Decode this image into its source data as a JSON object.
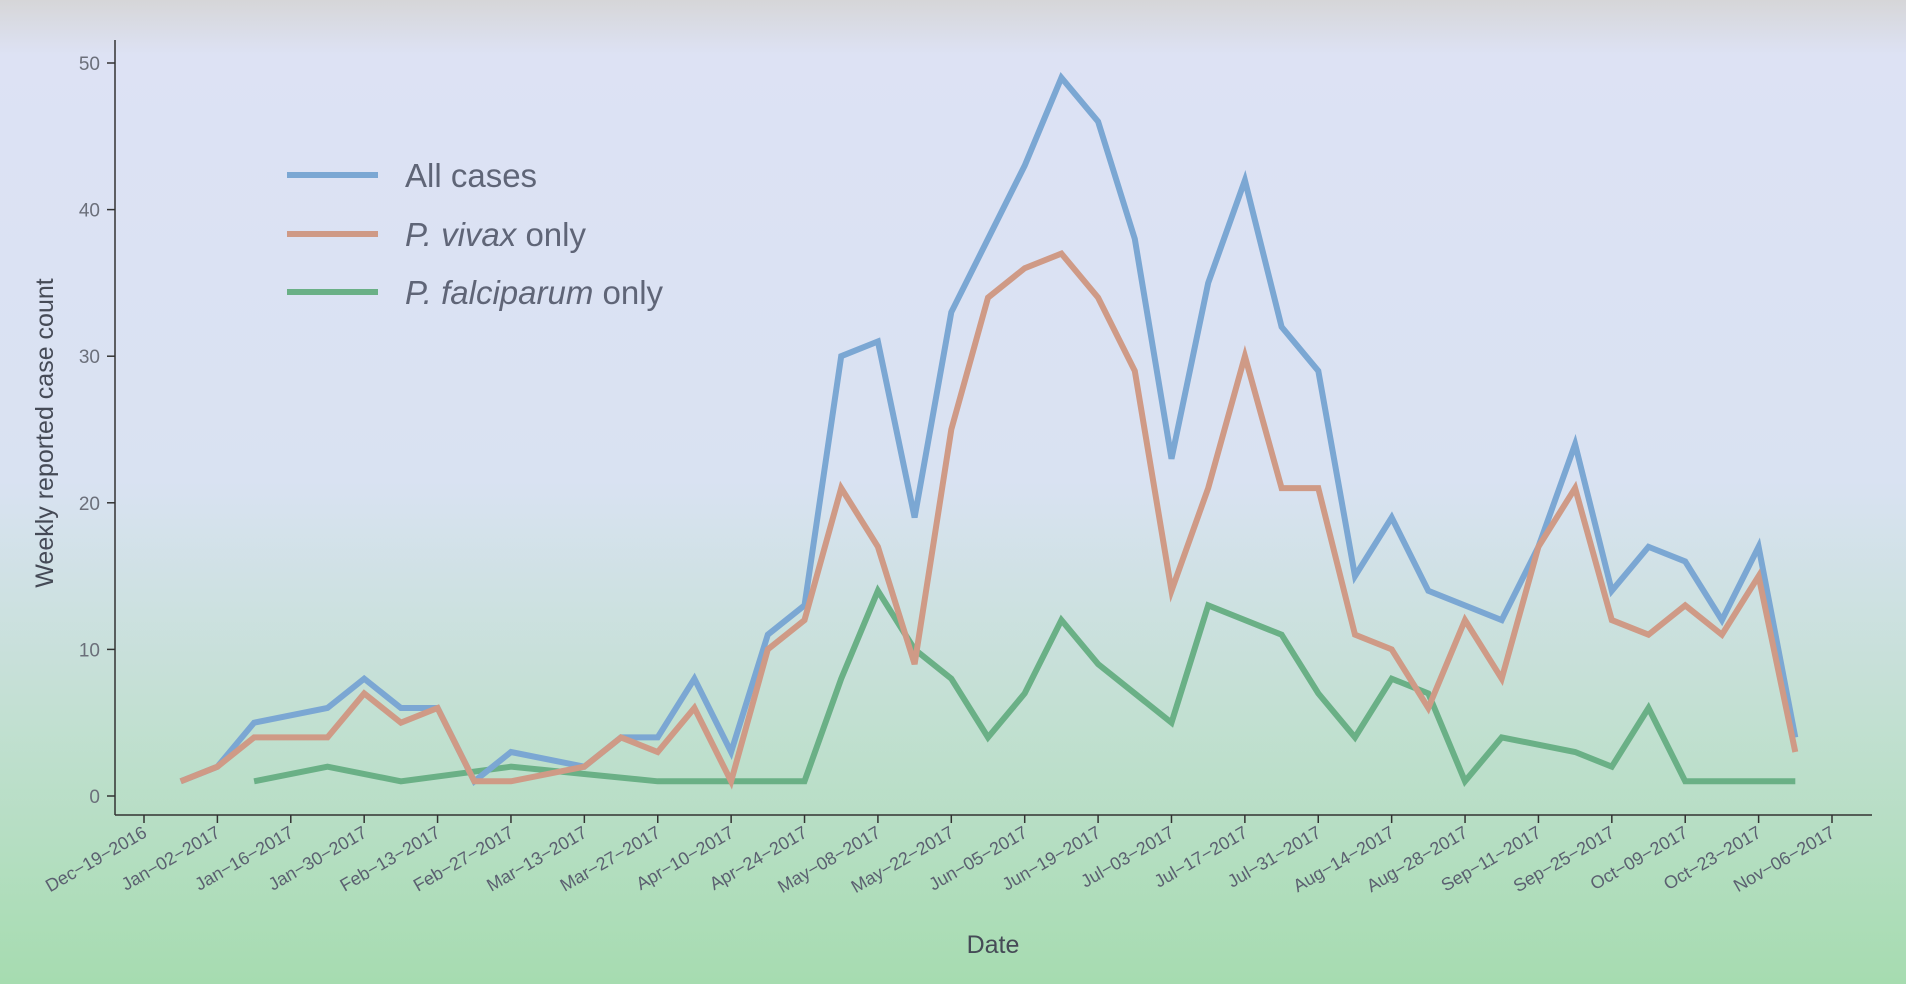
{
  "chart_data": {
    "type": "line",
    "title": "",
    "xlabel": "Date",
    "ylabel": "Weekly reported case count",
    "ylim": [
      0,
      50
    ],
    "xlim": [
      "2016-12-19",
      "2017-11-06"
    ],
    "y_ticks": [
      0,
      10,
      20,
      30,
      40,
      50
    ],
    "x_tick_labels": [
      "Dec−19−2016",
      "Jan−02−2017",
      "Jan−16−2017",
      "Jan−30−2017",
      "Feb−13−2017",
      "Feb−27−2017",
      "Mar−13−2017",
      "Mar−27−2017",
      "Apr−10−2017",
      "Apr−24−2017",
      "May−08−2017",
      "May−22−2017",
      "Jun−05−2017",
      "Jun−19−2017",
      "Jul−03−2017",
      "Jul−17−2017",
      "Jul−31−2017",
      "Aug−14−2017",
      "Aug−28−2017",
      "Sep−11−2017",
      "Sep−25−2017",
      "Oct−09−2017",
      "Oct−23−2017",
      "Nov−06−2017"
    ],
    "x_tick_dates": [
      "2016-12-19",
      "2017-01-02",
      "2017-01-16",
      "2017-01-30",
      "2017-02-13",
      "2017-02-27",
      "2017-03-13",
      "2017-03-27",
      "2017-04-10",
      "2017-04-24",
      "2017-05-08",
      "2017-05-22",
      "2017-06-05",
      "2017-06-19",
      "2017-07-03",
      "2017-07-17",
      "2017-07-31",
      "2017-08-14",
      "2017-08-28",
      "2017-09-11",
      "2017-09-25",
      "2017-10-09",
      "2017-10-23",
      "2017-11-06"
    ],
    "grid": false,
    "legend_position": "top-left",
    "series": [
      {
        "name": "All cases",
        "legend_plain": "All cases",
        "legend_italic": "",
        "color": "#7ba7d3",
        "points": [
          [
            "2016-12-26",
            1
          ],
          [
            "2017-01-02",
            2
          ],
          [
            "2017-01-09",
            5
          ],
          [
            "2017-01-23",
            6
          ],
          [
            "2017-01-30",
            8
          ],
          [
            "2017-02-06",
            6
          ],
          [
            "2017-02-13",
            6
          ],
          [
            "2017-02-20",
            1
          ],
          [
            "2017-02-27",
            3
          ],
          [
            "2017-03-13",
            2
          ],
          [
            "2017-03-20",
            4
          ],
          [
            "2017-03-27",
            4
          ],
          [
            "2017-04-03",
            8
          ],
          [
            "2017-04-10",
            3
          ],
          [
            "2017-04-17",
            11
          ],
          [
            "2017-04-24",
            13
          ],
          [
            "2017-05-01",
            30
          ],
          [
            "2017-05-08",
            31
          ],
          [
            "2017-05-15",
            19
          ],
          [
            "2017-05-22",
            33
          ],
          [
            "2017-05-29",
            38
          ],
          [
            "2017-06-05",
            43
          ],
          [
            "2017-06-12",
            49
          ],
          [
            "2017-06-19",
            46
          ],
          [
            "2017-06-26",
            38
          ],
          [
            "2017-07-03",
            23
          ],
          [
            "2017-07-10",
            35
          ],
          [
            "2017-07-17",
            42
          ],
          [
            "2017-07-24",
            32
          ],
          [
            "2017-07-31",
            29
          ],
          [
            "2017-08-07",
            15
          ],
          [
            "2017-08-14",
            19
          ],
          [
            "2017-08-21",
            14
          ],
          [
            "2017-09-04",
            12
          ],
          [
            "2017-09-11",
            17
          ],
          [
            "2017-09-18",
            24
          ],
          [
            "2017-09-25",
            14
          ],
          [
            "2017-10-02",
            17
          ],
          [
            "2017-10-09",
            16
          ],
          [
            "2017-10-16",
            12
          ],
          [
            "2017-10-23",
            17
          ],
          [
            "2017-10-30",
            4
          ]
        ]
      },
      {
        "name": "P. vivax only",
        "legend_plain": " only",
        "legend_italic": "P. vivax",
        "color": "#cf9a86",
        "points": [
          [
            "2016-12-26",
            1
          ],
          [
            "2017-01-02",
            2
          ],
          [
            "2017-01-09",
            4
          ],
          [
            "2017-01-23",
            4
          ],
          [
            "2017-01-30",
            7
          ],
          [
            "2017-02-06",
            5
          ],
          [
            "2017-02-13",
            6
          ],
          [
            "2017-02-20",
            1
          ],
          [
            "2017-02-27",
            1
          ],
          [
            "2017-03-13",
            2
          ],
          [
            "2017-03-20",
            4
          ],
          [
            "2017-03-27",
            3
          ],
          [
            "2017-04-03",
            6
          ],
          [
            "2017-04-10",
            1
          ],
          [
            "2017-04-17",
            10
          ],
          [
            "2017-04-24",
            12
          ],
          [
            "2017-05-01",
            21
          ],
          [
            "2017-05-08",
            17
          ],
          [
            "2017-05-15",
            9
          ],
          [
            "2017-05-22",
            25
          ],
          [
            "2017-05-29",
            34
          ],
          [
            "2017-06-05",
            36
          ],
          [
            "2017-06-12",
            37
          ],
          [
            "2017-06-19",
            34
          ],
          [
            "2017-06-26",
            29
          ],
          [
            "2017-07-03",
            14
          ],
          [
            "2017-07-10",
            21
          ],
          [
            "2017-07-17",
            30
          ],
          [
            "2017-07-24",
            21
          ],
          [
            "2017-07-31",
            21
          ],
          [
            "2017-08-07",
            11
          ],
          [
            "2017-08-14",
            10
          ],
          [
            "2017-08-21",
            6
          ],
          [
            "2017-08-28",
            12
          ],
          [
            "2017-09-04",
            8
          ],
          [
            "2017-09-11",
            17
          ],
          [
            "2017-09-18",
            21
          ],
          [
            "2017-09-25",
            12
          ],
          [
            "2017-10-02",
            11
          ],
          [
            "2017-10-09",
            13
          ],
          [
            "2017-10-16",
            11
          ],
          [
            "2017-10-23",
            15
          ],
          [
            "2017-10-30",
            3
          ]
        ]
      },
      {
        "name": "P. falciparum only",
        "legend_plain": " only",
        "legend_italic": "P. falciparum",
        "color": "#6ab086",
        "points": [
          [
            "2017-01-09",
            1
          ],
          [
            "2017-01-23",
            2
          ],
          [
            "2017-02-06",
            1
          ],
          [
            "2017-02-27",
            2
          ],
          [
            "2017-03-13",
            1.5
          ],
          [
            "2017-03-27",
            1
          ],
          [
            "2017-04-24",
            1
          ],
          [
            "2017-05-01",
            8
          ],
          [
            "2017-05-08",
            14
          ],
          [
            "2017-05-15",
            10
          ],
          [
            "2017-05-22",
            8
          ],
          [
            "2017-05-29",
            4
          ],
          [
            "2017-06-05",
            7
          ],
          [
            "2017-06-12",
            12
          ],
          [
            "2017-06-19",
            9
          ],
          [
            "2017-07-03",
            5
          ],
          [
            "2017-07-10",
            13
          ],
          [
            "2017-07-24",
            11
          ],
          [
            "2017-07-31",
            7
          ],
          [
            "2017-08-07",
            4
          ],
          [
            "2017-08-14",
            8
          ],
          [
            "2017-08-21",
            7
          ],
          [
            "2017-08-28",
            1
          ],
          [
            "2017-09-04",
            4
          ],
          [
            "2017-09-18",
            3
          ],
          [
            "2017-09-25",
            2
          ],
          [
            "2017-10-02",
            6
          ],
          [
            "2017-10-09",
            1
          ],
          [
            "2017-10-30",
            1
          ]
        ]
      }
    ]
  }
}
